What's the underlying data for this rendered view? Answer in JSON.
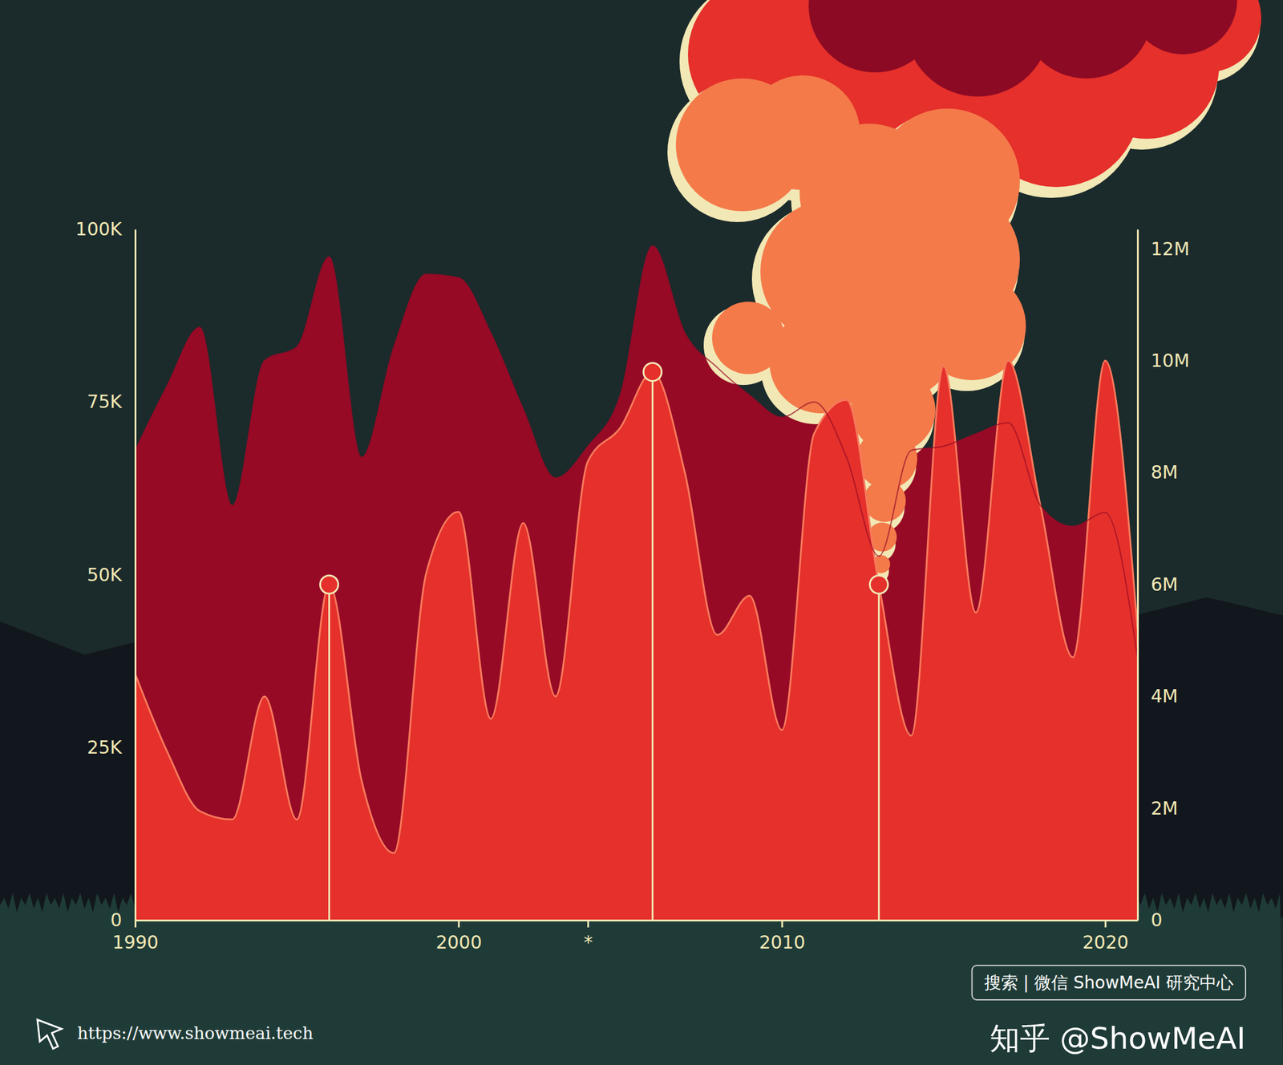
{
  "chart_data": {
    "type": "area",
    "x": [
      1990,
      1991,
      1992,
      1993,
      1994,
      1995,
      1996,
      1997,
      1998,
      1999,
      2000,
      2001,
      2002,
      2003,
      2004,
      2005,
      2006,
      2007,
      2008,
      2009,
      2010,
      2011,
      2012,
      2013,
      2014,
      2015,
      2016,
      2017,
      2018,
      2019,
      2020,
      2021
    ],
    "xlim": [
      1990,
      2021
    ],
    "xticks": [
      1990,
      2000,
      {
        "value": 2004,
        "label": "*"
      },
      2010,
      2020
    ],
    "ylim": [
      0,
      100000
    ],
    "yticks": [
      0,
      {
        "value": 25000,
        "label": "25K"
      },
      {
        "value": 50000,
        "label": "50K"
      },
      {
        "value": 75000,
        "label": "75K"
      },
      {
        "value": 100000,
        "label": "100K"
      }
    ],
    "y2lim": [
      0,
      12350000
    ],
    "y2ticks": [
      0,
      {
        "value": 2000000,
        "label": "2M"
      },
      {
        "value": 4000000,
        "label": "4M"
      },
      {
        "value": 6000000,
        "label": "6M"
      },
      {
        "value": 8000000,
        "label": "8M"
      },
      {
        "value": 10000000,
        "label": "10M"
      },
      {
        "value": 12000000,
        "label": "12M"
      }
    ],
    "grid": false,
    "series": [
      {
        "color": "#970a26",
        "values": [
          68000,
          77500,
          85800,
          60000,
          81000,
          83000,
          96000,
          67000,
          83000,
          93500,
          93000,
          85000,
          74000,
          64000,
          68600,
          76000,
          97600,
          85000,
          80000,
          76000,
          72800,
          75000,
          67000,
          52700,
          68000,
          68600,
          70400,
          72000,
          60000,
          57000,
          59000,
          38000
        ]
      },
      {
        "color": "#e5302b",
        "axis": "y2",
        "values": [
          4400000,
          3000000,
          1950000,
          1800000,
          4000000,
          1800000,
          6000000,
          2500000,
          1200000,
          6200000,
          7300000,
          3600000,
          7100000,
          4000000,
          8200000,
          8800000,
          9800000,
          8000000,
          5100000,
          5800000,
          3400000,
          8700000,
          9300000,
          6000000,
          3300000,
          9900000,
          5500000,
          10000000,
          7400000,
          4700000,
          10000000,
          5200000
        ]
      }
    ],
    "highlights": [
      1996,
      2006,
      2013
    ],
    "annotations": [
      "https://www.showmeai.tech",
      "搜索 | 微信 ShowMeAI 研究中心",
      "知乎 @ShowMeAI"
    ]
  }
}
